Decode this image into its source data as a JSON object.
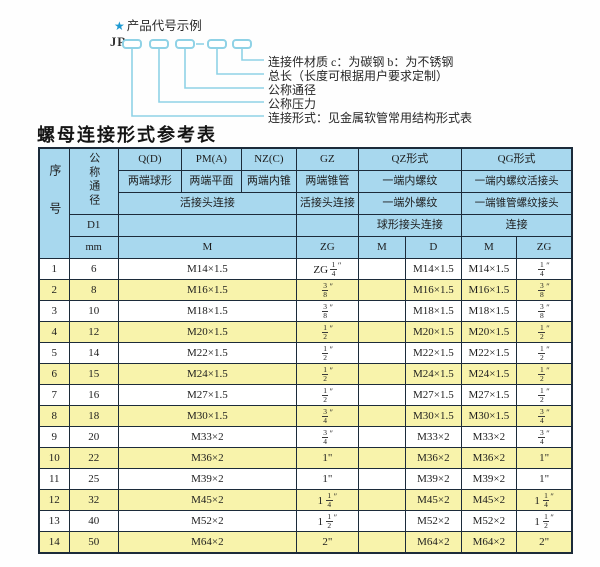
{
  "diagram": {
    "star": "★",
    "heading": "产品代号示例",
    "code": "JR",
    "labels": [
      "连接件材质  c：为碳钢  b：为不锈钢",
      "总长（长度可根据用户要求定制）",
      "公称通径",
      "公称压力",
      "连接形式：见金属软管常用结构形式表"
    ]
  },
  "table_title": "螺母连接形式参考表",
  "table": {
    "header": {
      "seq": "序号",
      "dn": "公称通径",
      "d1": "D1",
      "unit": "mm",
      "q": "Q(D)",
      "pm": "PM(A)",
      "nz": "NZ(C)",
      "gz": "GZ",
      "qz": "QZ形式",
      "qg": "QG形式",
      "q_desc": "两端球形",
      "pm_desc": "两端平面",
      "nz_desc": "两端内锥",
      "gz_desc": "两端锥管",
      "qz_desc": "一端内螺纹",
      "qg_desc": "一端内螺纹活接头",
      "union_conn": "活接头连接",
      "gz_conn": "活接头连接",
      "qz_desc2": "一端外螺纹",
      "qg_desc2": "一端锥管螺纹接头",
      "qz_conn": "球形接头连接",
      "qg_conn": "连接",
      "m": "M",
      "zg": "ZG",
      "qz_m": "M",
      "qz_d": "D",
      "qg_m": "M",
      "qg_zg": "ZG"
    },
    "columns": [
      "序号",
      "公称通径 mm",
      "M",
      "ZG",
      "QZ M",
      "QZ D",
      "QG M",
      "QG ZG"
    ],
    "rows": [
      [
        "1",
        "6",
        "M14×1.5",
        "ZG 1/4\"",
        "",
        "M14×1.5",
        "M14×1.5",
        "1/4\""
      ],
      [
        "2",
        "8",
        "M16×1.5",
        "3/8\"",
        "",
        "M16×1.5",
        "M16×1.5",
        "3/8\""
      ],
      [
        "3",
        "10",
        "M18×1.5",
        "3/8\"",
        "",
        "M18×1.5",
        "M18×1.5",
        "3/8\""
      ],
      [
        "4",
        "12",
        "M20×1.5",
        "1/2\"",
        "",
        "M20×1.5",
        "M20×1.5",
        "1/2\""
      ],
      [
        "5",
        "14",
        "M22×1.5",
        "1/2\"",
        "",
        "M22×1.5",
        "M22×1.5",
        "1/2\""
      ],
      [
        "6",
        "15",
        "M24×1.5",
        "1/2\"",
        "",
        "M24×1.5",
        "M24×1.5",
        "1/2\""
      ],
      [
        "7",
        "16",
        "M27×1.5",
        "1/2\"",
        "",
        "M27×1.5",
        "M27×1.5",
        "1/2\""
      ],
      [
        "8",
        "18",
        "M30×1.5",
        "3/4\"",
        "",
        "M30×1.5",
        "M30×1.5",
        "3/4\""
      ],
      [
        "9",
        "20",
        "M33×2",
        "3/4\"",
        "",
        "M33×2",
        "M33×2",
        "3/4\""
      ],
      [
        "10",
        "22",
        "M36×2",
        "1\"",
        "",
        "M36×2",
        "M36×2",
        "1\""
      ],
      [
        "11",
        "25",
        "M39×2",
        "1\"",
        "",
        "M39×2",
        "M39×2",
        "1\""
      ],
      [
        "12",
        "32",
        "M45×2",
        "1 1/4\"",
        "",
        "M45×2",
        "M45×2",
        "1 1/4\""
      ],
      [
        "13",
        "40",
        "M52×2",
        "1 1/2\"",
        "",
        "M52×2",
        "M52×2",
        "1 1/2\""
      ],
      [
        "14",
        "50",
        "M64×2",
        "2\"",
        "",
        "M64×2",
        "M64×2",
        "2\""
      ]
    ]
  },
  "colors": {
    "header_bg": "#a8d8ee",
    "row_alt_bg": "#f8f3ab",
    "diagram_line": "#8fd2e6",
    "star": "#1e9ad2",
    "border": "#1c2b3a"
  }
}
